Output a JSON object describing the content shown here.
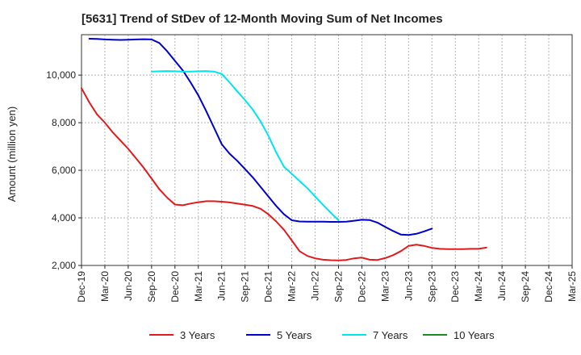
{
  "chart_data": {
    "type": "line",
    "title": "[5631]  Trend of StDev of 12-Month Moving Sum of Net Incomes",
    "xlabel": "",
    "ylabel": "Amount (million yen)",
    "ylim": [
      2000,
      11700
    ],
    "yticks": [
      2000,
      4000,
      6000,
      8000,
      10000
    ],
    "ytick_labels": [
      "2,000",
      "4,000",
      "6,000",
      "8,000",
      "10,000"
    ],
    "xtick_labels": [
      "Dec-19",
      "Mar-20",
      "Jun-20",
      "Sep-20",
      "Dec-20",
      "Mar-21",
      "Jun-21",
      "Sep-21",
      "Dec-21",
      "Mar-22",
      "Jun-22",
      "Sep-22",
      "Dec-22",
      "Mar-23",
      "Jun-23",
      "Sep-23",
      "Dec-23",
      "Mar-24",
      "Jun-24",
      "Sep-24",
      "Dec-24",
      "Mar-25"
    ],
    "grid": true,
    "legend_position": "bottom",
    "series": [
      {
        "name": "3 Years",
        "color": "#e31a1c",
        "start_index": 0,
        "values": [
          9450,
          8850,
          8350,
          8000,
          7600,
          7250,
          6900,
          6500,
          6100,
          5650,
          5200,
          4850,
          4560,
          4530,
          4600,
          4660,
          4700,
          4700,
          4680,
          4650,
          4600,
          4550,
          4500,
          4380,
          4150,
          3850,
          3500,
          3050,
          2600,
          2400,
          2300,
          2240,
          2220,
          2210,
          2230,
          2300,
          2330,
          2240,
          2230,
          2310,
          2430,
          2600,
          2820,
          2870,
          2820,
          2740,
          2700,
          2690,
          2690,
          2690,
          2700,
          2700,
          2750
        ]
      },
      {
        "name": "5 Years",
        "color": "#0000cc",
        "start_index": 1,
        "values": [
          11530,
          11520,
          11500,
          11490,
          11480,
          11490,
          11500,
          11510,
          11500,
          11350,
          11000,
          10600,
          10200,
          9700,
          9150,
          8500,
          7800,
          7100,
          6700,
          6400,
          6050,
          5700,
          5300,
          4900,
          4500,
          4150,
          3900,
          3850,
          3840,
          3840,
          3840,
          3830,
          3830,
          3840,
          3880,
          3920,
          3910,
          3800,
          3620,
          3450,
          3300,
          3280,
          3330,
          3430,
          3550
        ]
      },
      {
        "name": "7 Years",
        "color": "#00e5ee",
        "start_index": 9,
        "values": [
          10150,
          10160,
          10170,
          10160,
          10150,
          10150,
          10160,
          10170,
          10150,
          10050,
          9700,
          9320,
          8950,
          8550,
          8050,
          7450,
          6750,
          6150,
          5850,
          5550,
          5250,
          4900,
          4550,
          4220,
          3900
        ]
      },
      {
        "name": "10 Years",
        "color": "#1e8c1e",
        "start_index": 0,
        "values": []
      }
    ]
  }
}
